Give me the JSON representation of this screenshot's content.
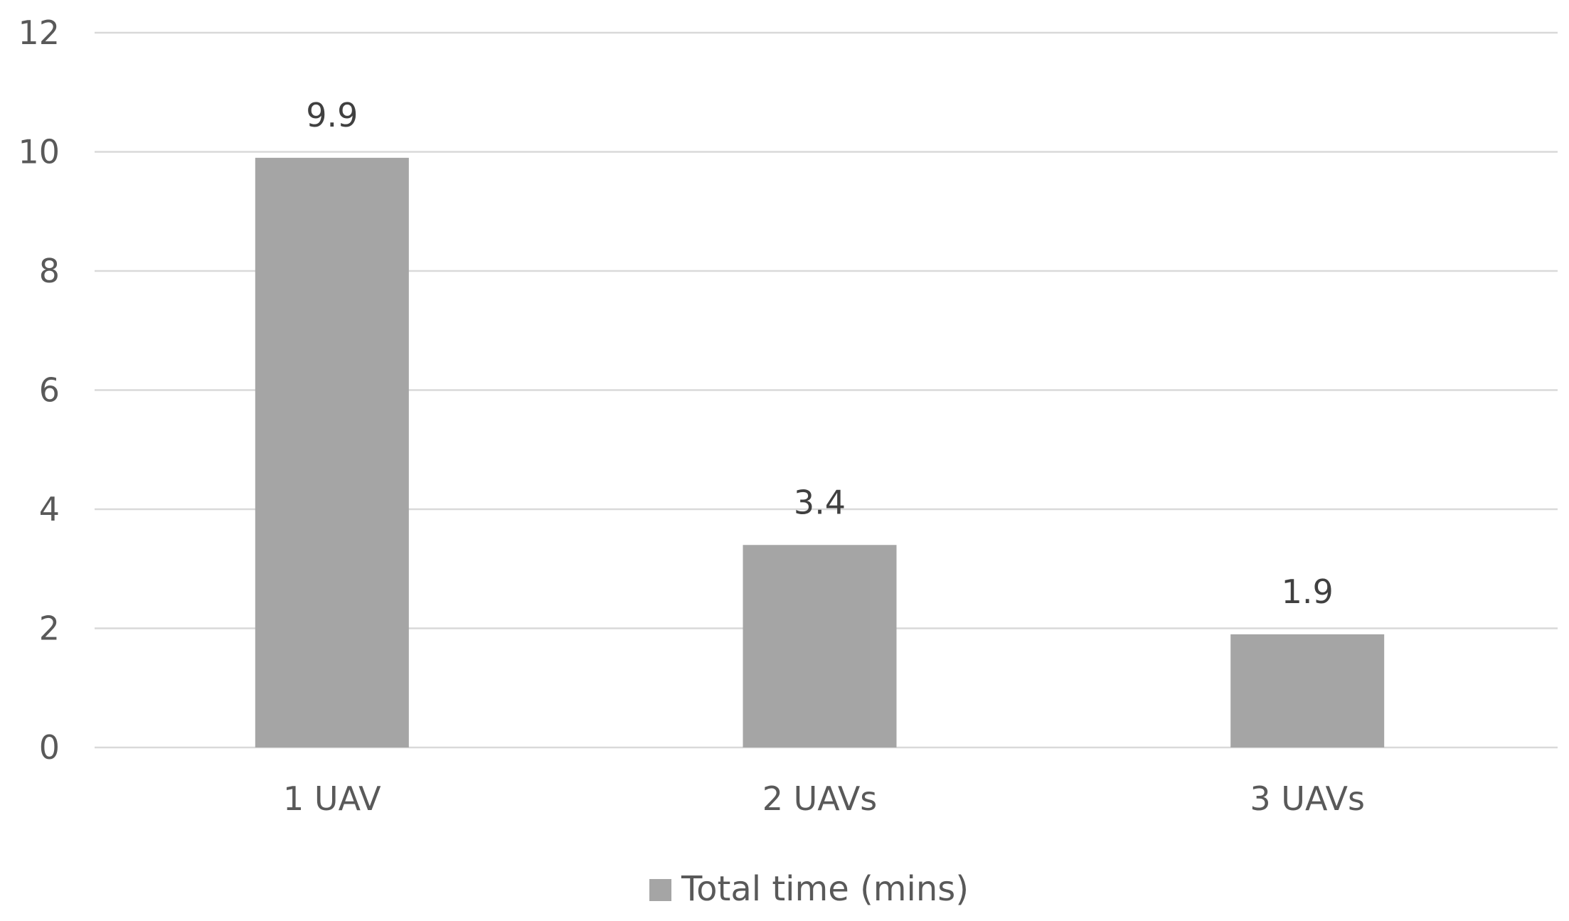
{
  "chart_data": {
    "type": "bar",
    "categories": [
      "1 UAV",
      "2 UAVs",
      "3 UAVs"
    ],
    "series": [
      {
        "name": "Total time (mins)",
        "values": [
          9.9,
          3.4,
          1.9
        ],
        "color": "#a5a5a5"
      }
    ],
    "data_labels": [
      "9.9",
      "3.4",
      "1.9"
    ],
    "yticks": [
      "0",
      "2",
      "4",
      "6",
      "8",
      "10",
      "12"
    ],
    "ylim": [
      0,
      12
    ],
    "grid": true,
    "legend_position": "bottom"
  }
}
